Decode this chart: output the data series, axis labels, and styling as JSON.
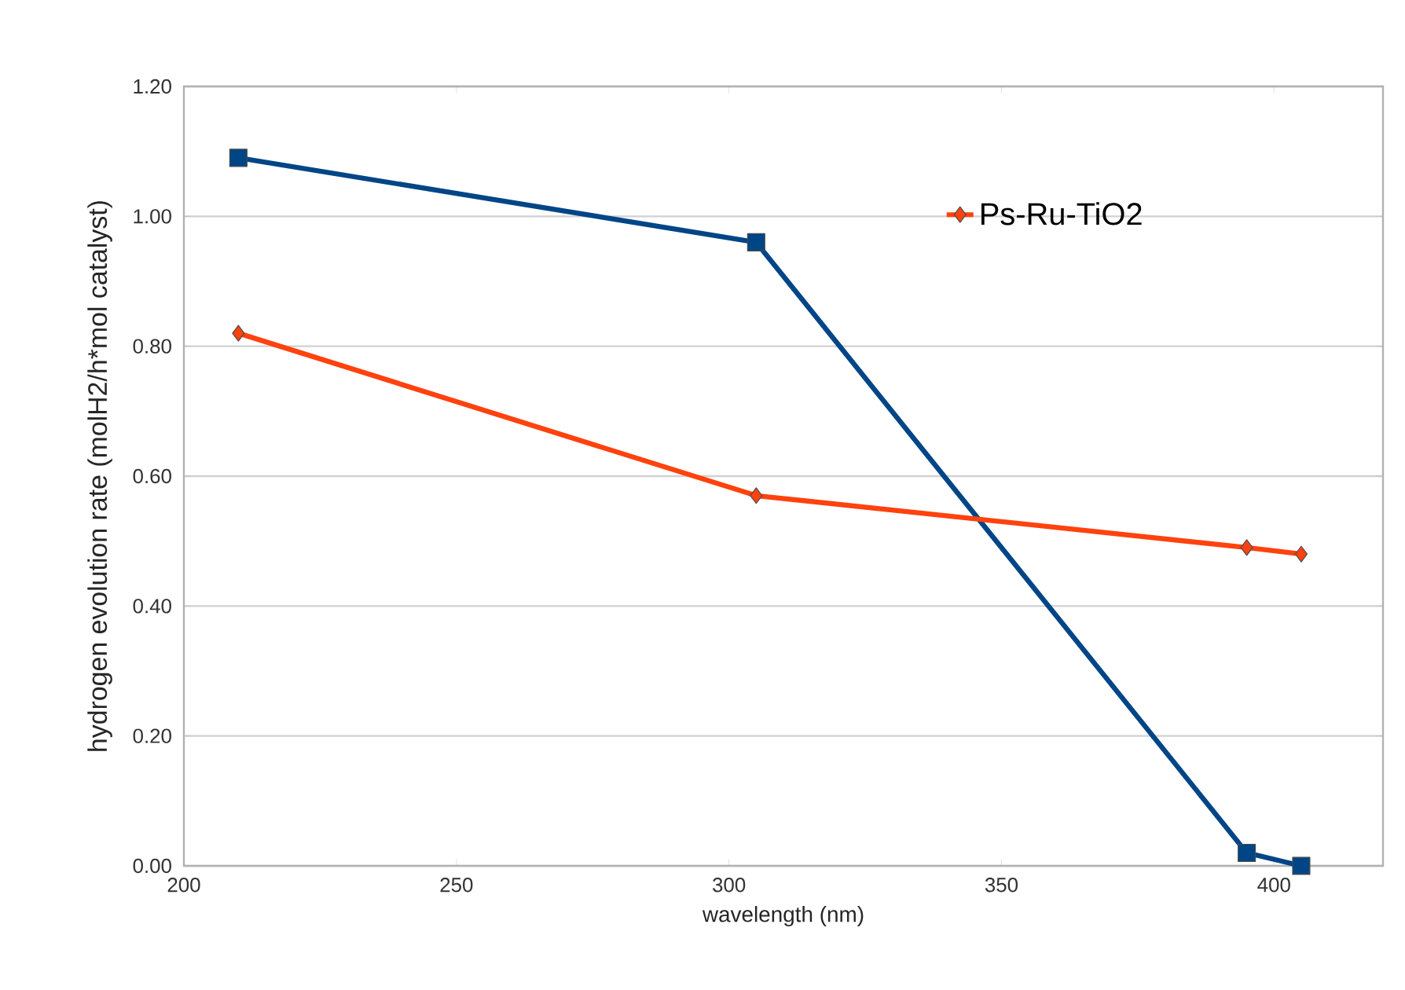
{
  "chart_data": {
    "type": "line",
    "xlabel": "wavelength (nm)",
    "ylabel": "hydrogen evolution rate (molH2/h*mol catalyst)",
    "xlim": [
      200,
      420
    ],
    "xticks": [
      200,
      250,
      300,
      350,
      400
    ],
    "ylim": [
      0,
      1.2
    ],
    "yticks": [
      {
        "value": 0,
        "label": "0.00"
      },
      {
        "value": 0.2,
        "label": "0.20"
      },
      {
        "value": 0.4,
        "label": "0.40"
      },
      {
        "value": 0.6,
        "label": "0.60"
      },
      {
        "value": 0.8,
        "label": "0.80"
      },
      {
        "value": 1.0,
        "label": "1.00"
      },
      {
        "value": 1.2,
        "label": "1.20"
      }
    ],
    "grid": "y",
    "legend": "top right",
    "series": [
      {
        "color": "#004586",
        "marker": "square",
        "x": [
          210,
          305,
          395,
          405
        ],
        "values": [
          1.09,
          0.96,
          0.02,
          0
        ]
      },
      {
        "name": "Ps-Ru-TiO2",
        "color": "#ff420e",
        "marker": "diamond",
        "x": [
          210,
          305,
          395,
          405
        ],
        "values": [
          0.82,
          0.57,
          0.49,
          0.48
        ]
      }
    ]
  }
}
